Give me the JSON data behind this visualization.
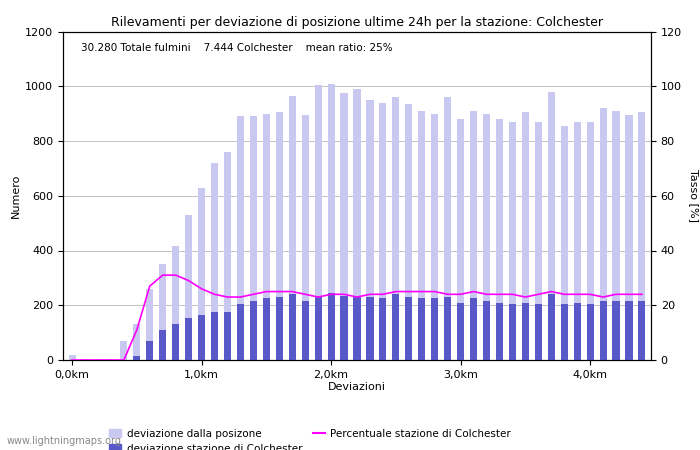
{
  "title": "Rilevamenti per deviazione di posizione ultime 24h per la stazione: Colchester",
  "subtitle": "30.280 Totale fulmini    7.444 Colchester    mean ratio: 25%",
  "xlabel": "Deviazioni",
  "ylabel_left": "Numero",
  "ylabel_right": "Tasso [%]",
  "footer": "www.lightningmaps.org",
  "xtick_labels": [
    "0,0km",
    "1,0km",
    "2,0km",
    "3,0km",
    "4,0km"
  ],
  "xtick_positions": [
    0,
    10,
    20,
    30,
    40
  ],
  "ylim_left": [
    0,
    1200
  ],
  "ylim_right": [
    0,
    120
  ],
  "yticks_left": [
    0,
    200,
    400,
    600,
    800,
    1000,
    1200
  ],
  "yticks_right": [
    0,
    20,
    40,
    60,
    80,
    100,
    120
  ],
  "bar_total": [
    20,
    5,
    5,
    5,
    70,
    130,
    260,
    350,
    415,
    530,
    630,
    720,
    760,
    890,
    890,
    900,
    905,
    965,
    895,
    1005,
    1010,
    975,
    990,
    950,
    940,
    960,
    935,
    910,
    900,
    960,
    880,
    910,
    900,
    880,
    870,
    905,
    870,
    980,
    855,
    870,
    870,
    920,
    910,
    895,
    905
  ],
  "bar_station": [
    0,
    0,
    0,
    0,
    0,
    15,
    70,
    110,
    130,
    155,
    165,
    175,
    175,
    205,
    215,
    225,
    230,
    240,
    215,
    235,
    245,
    235,
    230,
    230,
    225,
    240,
    230,
    225,
    225,
    230,
    210,
    225,
    215,
    210,
    205,
    210,
    205,
    240,
    205,
    210,
    205,
    215,
    215,
    215,
    215
  ],
  "line_ratio": [
    0,
    0,
    0,
    0,
    0,
    11,
    27,
    31,
    31,
    29,
    26,
    24,
    23,
    23,
    24,
    25,
    25,
    25,
    24,
    23,
    24,
    24,
    23,
    24,
    24,
    25,
    25,
    25,
    25,
    24,
    24,
    25,
    24,
    24,
    24,
    23,
    24,
    25,
    24,
    24,
    24,
    23,
    24,
    24,
    24
  ],
  "color_total": "#c8c8f0",
  "color_station": "#5858c8",
  "color_line": "#ff00ff",
  "grid_color": "#aaaaaa",
  "background_color": "#ffffff",
  "legend_label_total": "deviazione dalla posizone",
  "legend_label_station": "deviazione stazione di Colchester",
  "legend_label_line": "Percentuale stazione di Colchester",
  "n_bars": 45,
  "bar_width": 0.55,
  "title_fontsize": 9,
  "axis_fontsize": 8,
  "tick_fontsize": 8,
  "subtitle_fontsize": 7.5,
  "legend_fontsize": 7.5,
  "footer_fontsize": 7
}
